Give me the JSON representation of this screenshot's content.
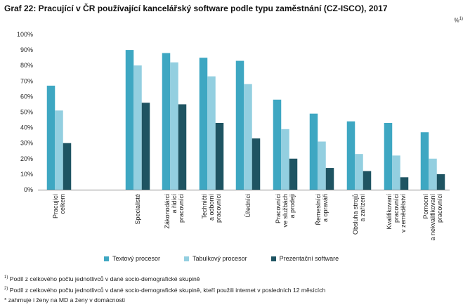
{
  "title": "Graf 22: Pracující v ČR používající kancelářský software podle typu zaměstnání (CZ-ISCO), 2017",
  "unit": "%",
  "unit_sup": "1)",
  "colors": {
    "textovy": "#3ea7c2",
    "tabulkovy": "#93cfe0",
    "prezentacni": "#1e5462"
  },
  "chart_data": {
    "type": "bar",
    "title": "Graf 22: Pracující v ČR používající kancelářský software podle typu zaměstnání (CZ-ISCO), 2017",
    "ylabel": "%",
    "ylim": [
      0,
      100
    ],
    "yticks": [
      "0%",
      "10%",
      "20%",
      "30%",
      "40%",
      "50%",
      "60%",
      "70%",
      "80%",
      "90%",
      "100%"
    ],
    "grid": false,
    "legend": "bottom",
    "categories": [
      "Pracující\ncelkem",
      "Specialisté",
      "Zákonodárci\na řídící\npracovníci",
      "Techničtí\na odborní\npracovníci",
      "Úředníci",
      "Pracovníci\nve službách\na prodeji",
      "Řemeslníci\na opraváři",
      "Obsluha strojů\na zařízení",
      "Kvalifikovaní\npracovníci\nv zemědělství",
      "Pomocní\na nekvalifikovaní\npracovníci"
    ],
    "series": [
      {
        "name": "Textový procesor",
        "values": [
          67,
          90,
          88,
          85,
          83,
          58,
          49,
          44,
          43,
          37
        ]
      },
      {
        "name": "Tabulkový procesor",
        "values": [
          51,
          80,
          82,
          73,
          68,
          39,
          31,
          23,
          22,
          20
        ]
      },
      {
        "name": "Prezentační software",
        "values": [
          30,
          56,
          55,
          43,
          33,
          20,
          14,
          12,
          8,
          10
        ]
      }
    ]
  },
  "notes": [
    {
      "sup": "1)",
      "text": " Podíl z celkového počtu jednotlivců v dané socio-demografické skupině"
    },
    {
      "sup": "2)",
      "text": " Podíl z celkového počtu jednotlivců v dané socio-demografické skupině, kteří použili internet v posledních 12 měsících"
    },
    {
      "sup": "",
      "text": "* zahrnuje i ženy na MD a ženy v domácnosti"
    }
  ]
}
